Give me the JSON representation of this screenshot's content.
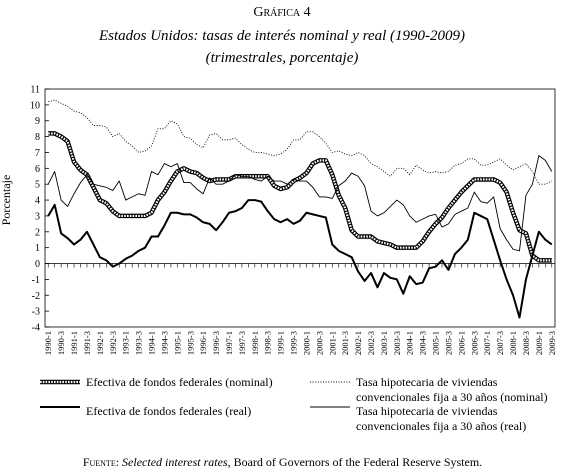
{
  "chart_data": {
    "type": "line",
    "title": "Gráfica 4",
    "subtitle": "Estados Unidos: tasas de interés nominal y real (1990-2009)",
    "subtitle2": "(trimestrales, porcentaje)",
    "y_label": "Porcentaje",
    "categories": [
      "1990-1",
      null,
      "1990-3",
      null,
      "1991-1",
      null,
      "1991-3",
      null,
      "1992-1",
      null,
      "1992-3",
      null,
      "1993-1",
      null,
      "1993-3",
      null,
      "1994-1",
      null,
      "1994-3",
      null,
      "1995-1",
      null,
      "1995-3",
      null,
      "1996-1",
      null,
      "1996-3",
      null,
      "1997-1",
      null,
      "1997-3",
      null,
      "1998-1",
      null,
      "1998-3",
      null,
      "1999-1",
      null,
      "1999-3",
      null,
      "2000-1",
      null,
      "2000-3",
      null,
      "2001-1",
      null,
      "2001-3",
      null,
      "2002-1",
      null,
      "2002-3",
      null,
      "2003-1",
      null,
      "2003-3",
      null,
      "2004-1",
      null,
      "2004-3",
      null,
      "2005-1",
      null,
      "2005-3",
      null,
      "2006-1",
      null,
      "2006-3",
      null,
      "2007-1",
      null,
      "2007-3",
      null,
      "2008-1",
      null,
      "2008-3",
      null,
      "2009-1",
      null,
      "2009-3"
    ],
    "series": [
      {
        "name": "Efectiva de fondos federales (nominal)",
        "color": "#000000",
        "style": "circles",
        "values": [
          8.2,
          8.2,
          8.0,
          7.7,
          6.4,
          5.9,
          5.6,
          4.8,
          4.0,
          3.8,
          3.3,
          3.0,
          3.0,
          3.0,
          3.0,
          3.0,
          3.2,
          4.0,
          4.5,
          5.2,
          5.8,
          6.0,
          5.8,
          5.7,
          5.4,
          5.2,
          5.3,
          5.3,
          5.3,
          5.5,
          5.5,
          5.5,
          5.5,
          5.5,
          5.5,
          4.9,
          4.7,
          4.8,
          5.2,
          5.4,
          5.7,
          6.3,
          6.5,
          6.5,
          5.6,
          4.3,
          3.5,
          2.1,
          1.7,
          1.7,
          1.7,
          1.4,
          1.3,
          1.2,
          1.0,
          1.0,
          1.0,
          1.0,
          1.4,
          2.0,
          2.5,
          2.9,
          3.5,
          4.0,
          4.5,
          4.9,
          5.3,
          5.3,
          5.3,
          5.3,
          5.1,
          4.5,
          3.2,
          2.1,
          1.9,
          0.5,
          0.2,
          0.2,
          0.2
        ]
      },
      {
        "name": "Tasa hipotecaria de viviendas convencionales fija a 30 años (nominal)",
        "color": "#000000",
        "style": "dotted",
        "values": [
          10.2,
          10.3,
          10.1,
          9.9,
          9.6,
          9.5,
          9.2,
          8.7,
          8.7,
          8.6,
          8.0,
          8.2,
          7.7,
          7.4,
          7.0,
          7.1,
          7.4,
          8.5,
          8.5,
          9.0,
          8.8,
          8.0,
          7.9,
          7.5,
          7.3,
          8.1,
          8.2,
          7.8,
          7.8,
          7.9,
          7.5,
          7.2,
          7.0,
          7.0,
          6.9,
          6.8,
          6.9,
          7.2,
          7.8,
          7.8,
          8.3,
          8.3,
          8.0,
          7.6,
          7.0,
          7.1,
          6.9,
          6.8,
          7.0,
          6.8,
          6.3,
          6.1,
          5.8,
          5.5,
          6.0,
          6.0,
          5.6,
          6.2,
          5.9,
          5.7,
          5.8,
          5.7,
          5.8,
          6.2,
          6.3,
          6.6,
          6.6,
          6.2,
          6.2,
          6.4,
          6.6,
          6.2,
          5.9,
          6.1,
          6.3,
          5.8,
          5.0,
          5.0,
          5.2
        ]
      },
      {
        "name": "Efectiva de fondos federales (real)",
        "color": "#000000",
        "style": "thick",
        "values": [
          3.0,
          3.7,
          1.9,
          1.6,
          1.2,
          1.5,
          2.0,
          1.2,
          0.4,
          0.2,
          -0.2,
          0.0,
          0.3,
          0.5,
          0.8,
          1.0,
          1.7,
          1.7,
          2.4,
          3.2,
          3.2,
          3.1,
          3.1,
          2.9,
          2.6,
          2.5,
          2.1,
          2.6,
          3.2,
          3.3,
          3.5,
          4.0,
          4.0,
          3.9,
          3.3,
          2.8,
          2.6,
          2.8,
          2.5,
          2.7,
          3.2,
          3.1,
          3.0,
          2.9,
          1.2,
          0.8,
          0.6,
          0.4,
          -0.5,
          -1.1,
          -0.6,
          -1.5,
          -0.6,
          -0.9,
          -1.0,
          -1.9,
          -0.8,
          -1.3,
          -1.2,
          -0.3,
          -0.2,
          0.2,
          -0.4,
          0.6,
          1.0,
          1.5,
          3.2,
          3.0,
          2.8,
          1.5,
          0.2,
          -1.0,
          -2.0,
          -3.4,
          -1.0,
          0.5,
          2.0,
          1.5,
          1.2
        ]
      },
      {
        "name": "Tasa hipotecaria de viviendas convencionales fija a 30 años (real)",
        "color": "#000000",
        "style": "thin",
        "values": [
          5.0,
          5.8,
          4.0,
          3.6,
          4.4,
          5.1,
          5.6,
          5.0,
          4.9,
          4.8,
          4.6,
          5.2,
          4.0,
          4.2,
          4.4,
          4.3,
          5.8,
          5.6,
          6.3,
          6.1,
          6.3,
          5.1,
          5.1,
          4.7,
          4.4,
          5.4,
          5.0,
          5.0,
          5.2,
          5.6,
          5.5,
          5.5,
          5.3,
          5.2,
          5.5,
          5.2,
          5.2,
          5.0,
          5.3,
          5.2,
          5.2,
          4.8,
          4.2,
          4.2,
          4.1,
          4.9,
          5.2,
          5.7,
          5.5,
          4.9,
          3.3,
          3.0,
          3.2,
          3.6,
          4.0,
          3.7,
          3.0,
          2.6,
          2.8,
          3.0,
          3.1,
          2.3,
          2.5,
          3.1,
          3.3,
          3.5,
          4.5,
          3.9,
          3.8,
          4.2,
          2.2,
          1.5,
          0.9,
          0.8,
          4.3,
          5.0,
          6.8,
          6.5,
          5.8
        ]
      }
    ],
    "ylim": [
      -4,
      11
    ],
    "yticks": [
      11,
      10,
      9,
      8,
      7,
      6,
      5,
      4,
      3,
      2,
      1,
      0,
      -1,
      -2,
      -3,
      -4
    ],
    "grid": false,
    "source_label": "Fuente:",
    "source_title": "Selected interest rates",
    "source_text": ", Board of Governors of the Federal Reserve System."
  }
}
